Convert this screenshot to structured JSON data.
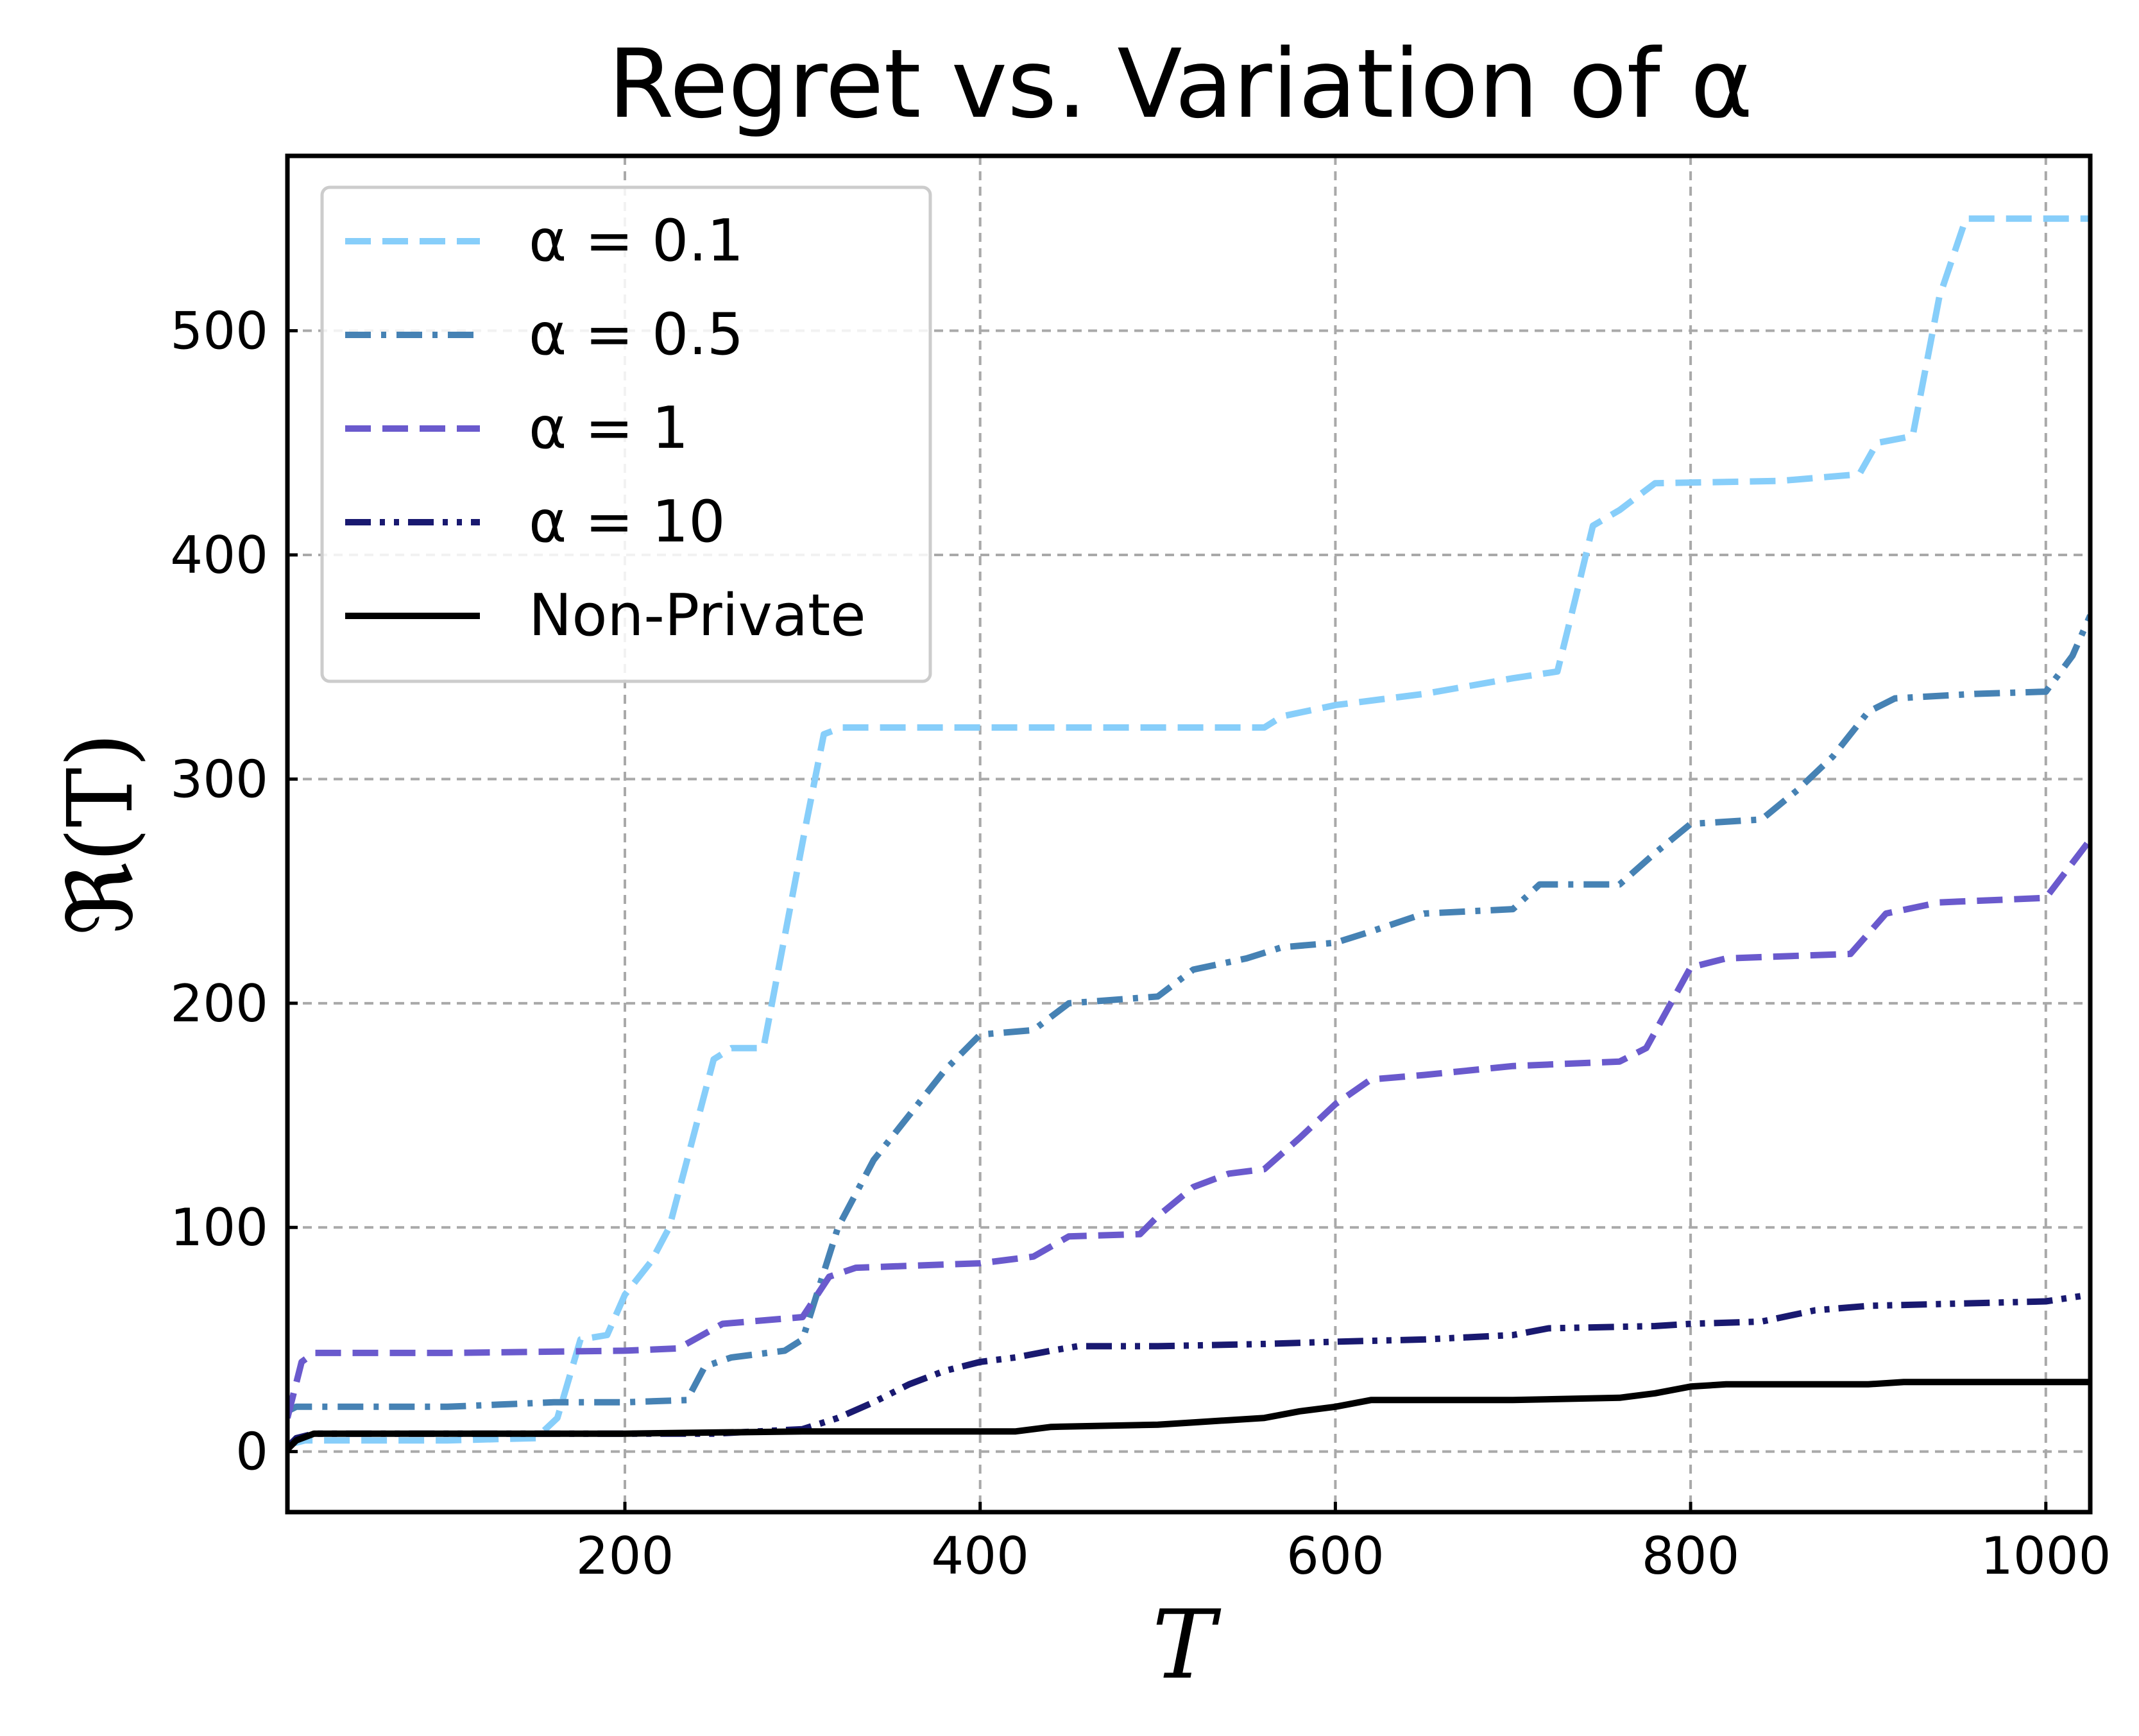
{
  "chart_data": {
    "type": "line",
    "title": "Regret vs. Variation of α",
    "xlabel": "T",
    "ylabel": "ℜ(T)",
    "xlim": [
      10,
      1025
    ],
    "ylim": [
      -27,
      578
    ],
    "xticks": [
      200,
      400,
      600,
      800,
      1000
    ],
    "yticks": [
      0,
      100,
      200,
      300,
      400,
      500
    ],
    "grid": true,
    "legend_position": "upper-left",
    "series": [
      {
        "name": "α = 0.1",
        "color": "#87CEFA",
        "dash": "dashed",
        "points": [
          [
            10,
            3
          ],
          [
            20,
            5
          ],
          [
            40,
            5
          ],
          [
            100,
            5
          ],
          [
            150,
            6
          ],
          [
            162,
            15
          ],
          [
            175,
            50
          ],
          [
            190,
            52
          ],
          [
            200,
            70
          ],
          [
            215,
            85
          ],
          [
            225,
            100
          ],
          [
            235,
            130
          ],
          [
            250,
            175
          ],
          [
            260,
            180
          ],
          [
            278,
            180
          ],
          [
            290,
            230
          ],
          [
            302,
            280
          ],
          [
            312,
            320
          ],
          [
            322,
            323
          ],
          [
            400,
            323
          ],
          [
            450,
            323
          ],
          [
            500,
            323
          ],
          [
            560,
            323
          ],
          [
            570,
            328
          ],
          [
            600,
            333
          ],
          [
            650,
            338
          ],
          [
            700,
            345
          ],
          [
            725,
            348
          ],
          [
            735,
            380
          ],
          [
            745,
            413
          ],
          [
            760,
            420
          ],
          [
            780,
            432
          ],
          [
            850,
            433
          ],
          [
            895,
            436
          ],
          [
            905,
            450
          ],
          [
            925,
            453
          ],
          [
            940,
            515
          ],
          [
            955,
            550
          ],
          [
            1025,
            550
          ]
        ]
      },
      {
        "name": "α = 0.5",
        "color": "#4682B4",
        "dash": "dashdot",
        "points": [
          [
            10,
            18
          ],
          [
            15,
            20
          ],
          [
            50,
            20
          ],
          [
            100,
            20
          ],
          [
            130,
            21
          ],
          [
            160,
            22
          ],
          [
            200,
            22
          ],
          [
            235,
            23
          ],
          [
            245,
            38
          ],
          [
            260,
            42
          ],
          [
            290,
            45
          ],
          [
            300,
            50
          ],
          [
            320,
            100
          ],
          [
            340,
            130
          ],
          [
            360,
            150
          ],
          [
            380,
            170
          ],
          [
            400,
            186
          ],
          [
            430,
            188
          ],
          [
            450,
            200
          ],
          [
            500,
            203
          ],
          [
            520,
            215
          ],
          [
            550,
            220
          ],
          [
            570,
            225
          ],
          [
            600,
            227
          ],
          [
            620,
            232
          ],
          [
            650,
            240
          ],
          [
            700,
            242
          ],
          [
            715,
            253
          ],
          [
            760,
            253
          ],
          [
            780,
            267
          ],
          [
            800,
            280
          ],
          [
            840,
            282
          ],
          [
            860,
            295
          ],
          [
            880,
            310
          ],
          [
            900,
            330
          ],
          [
            915,
            336
          ],
          [
            960,
            338
          ],
          [
            1000,
            339
          ],
          [
            1015,
            355
          ],
          [
            1025,
            373
          ]
        ]
      },
      {
        "name": "α = 1",
        "color": "#6A5ACD",
        "dash": "dashed",
        "points": [
          [
            10,
            15
          ],
          [
            18,
            40
          ],
          [
            25,
            44
          ],
          [
            100,
            44
          ],
          [
            200,
            45
          ],
          [
            230,
            46
          ],
          [
            255,
            57
          ],
          [
            300,
            60
          ],
          [
            315,
            78
          ],
          [
            330,
            82
          ],
          [
            400,
            84
          ],
          [
            430,
            87
          ],
          [
            450,
            96
          ],
          [
            490,
            97
          ],
          [
            500,
            105
          ],
          [
            520,
            118
          ],
          [
            540,
            124
          ],
          [
            560,
            126
          ],
          [
            580,
            140
          ],
          [
            600,
            155
          ],
          [
            620,
            166
          ],
          [
            650,
            168
          ],
          [
            700,
            172
          ],
          [
            760,
            174
          ],
          [
            775,
            180
          ],
          [
            800,
            216
          ],
          [
            820,
            220
          ],
          [
            890,
            222
          ],
          [
            910,
            240
          ],
          [
            940,
            245
          ],
          [
            1000,
            247
          ],
          [
            1025,
            273
          ]
        ]
      },
      {
        "name": "α = 10",
        "color": "#191970",
        "dash": "dashdotdot",
        "points": [
          [
            10,
            2
          ],
          [
            15,
            6
          ],
          [
            25,
            8
          ],
          [
            100,
            8
          ],
          [
            200,
            8
          ],
          [
            250,
            8
          ],
          [
            300,
            10
          ],
          [
            320,
            15
          ],
          [
            340,
            22
          ],
          [
            360,
            30
          ],
          [
            380,
            36
          ],
          [
            400,
            40
          ],
          [
            420,
            42
          ],
          [
            440,
            45
          ],
          [
            455,
            47
          ],
          [
            500,
            47
          ],
          [
            560,
            48
          ],
          [
            600,
            49
          ],
          [
            650,
            50
          ],
          [
            700,
            52
          ],
          [
            720,
            55
          ],
          [
            780,
            56
          ],
          [
            800,
            57
          ],
          [
            840,
            58
          ],
          [
            870,
            63
          ],
          [
            900,
            65
          ],
          [
            950,
            66
          ],
          [
            1000,
            67
          ],
          [
            1025,
            70
          ]
        ]
      },
      {
        "name": "Non-Private",
        "color": "#000000",
        "dash": "solid",
        "points": [
          [
            10,
            1
          ],
          [
            15,
            5
          ],
          [
            25,
            8
          ],
          [
            100,
            8
          ],
          [
            200,
            8
          ],
          [
            300,
            9
          ],
          [
            420,
            9
          ],
          [
            440,
            11
          ],
          [
            500,
            12
          ],
          [
            520,
            13
          ],
          [
            540,
            14
          ],
          [
            560,
            15
          ],
          [
            580,
            18
          ],
          [
            600,
            20
          ],
          [
            620,
            23
          ],
          [
            700,
            23
          ],
          [
            760,
            24
          ],
          [
            780,
            26
          ],
          [
            800,
            29
          ],
          [
            820,
            30
          ],
          [
            900,
            30
          ],
          [
            920,
            31
          ],
          [
            1025,
            31
          ]
        ]
      }
    ]
  }
}
